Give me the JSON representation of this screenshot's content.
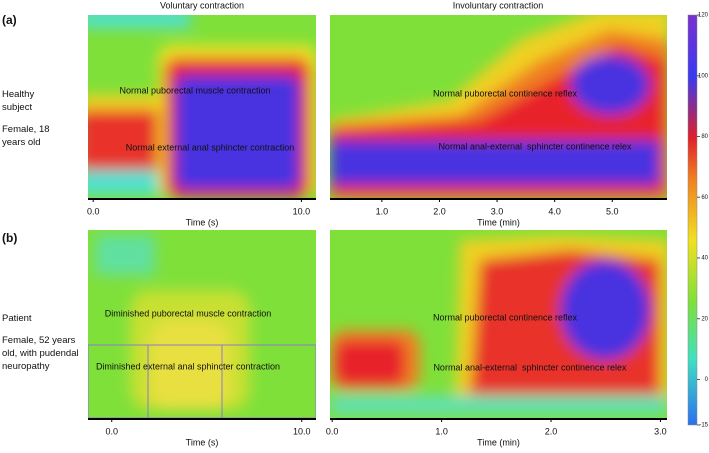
{
  "column_titles": [
    "Voluntary contraction",
    "Involuntary contraction"
  ],
  "rows": [
    {
      "label": "(a)",
      "subject": "Healthy subject",
      "description": "Female, 18 years old",
      "panels": [
        {
          "annotations": [
            "Normal puborectal muscle contraction",
            "Normal external anal sphincter contraction"
          ],
          "xlabel": "Time (s)",
          "xlim": [
            -0.25,
            10.7
          ],
          "xticks": [
            {
              "value": 0,
              "label": "0.0"
            },
            {
              "value": 10,
              "label": "10.0"
            }
          ]
        },
        {
          "annotations": [
            "Normal puborectal continence reflex",
            "Normal anal-external  sphincter continence relex"
          ],
          "xlabel": "Time (min)",
          "xlim": [
            0.1,
            5.95
          ],
          "xticks": [
            {
              "value": 1,
              "label": "1.0"
            },
            {
              "value": 2,
              "label": "2.0"
            },
            {
              "value": 3,
              "label": "3.0"
            },
            {
              "value": 4,
              "label": "4.0"
            },
            {
              "value": 5,
              "label": "5.0"
            }
          ]
        }
      ]
    },
    {
      "label": "(b)",
      "subject": "Patient",
      "description": "Female, 52 years old, with pudendal neuropathy",
      "panels": [
        {
          "annotations": [
            "Diminished puborectal muscle contraction",
            "Diminished external anal sphincter contraction"
          ],
          "xlabel": "Time (s)",
          "xlim": [
            -1.25,
            10.75
          ],
          "xticks": [
            {
              "value": 0,
              "label": "0.0"
            },
            {
              "value": 10,
              "label": "10.0"
            }
          ]
        },
        {
          "annotations": [
            "Normal puborectal continence reflex",
            "Normal anal-external  sphincter continence relex"
          ],
          "xlabel": "Time (min)",
          "xlim": [
            -0.02,
            3.06
          ],
          "xticks": [
            {
              "value": 0,
              "label": "0.0"
            },
            {
              "value": 1,
              "label": "1.0"
            },
            {
              "value": 2,
              "label": "2.0"
            },
            {
              "value": 3,
              "label": "3.0"
            }
          ]
        }
      ]
    }
  ],
  "colorbar": {
    "ylim": [
      -15,
      120
    ],
    "yticks": [
      120,
      100,
      80,
      60,
      40,
      20,
      0,
      -15
    ]
  }
}
